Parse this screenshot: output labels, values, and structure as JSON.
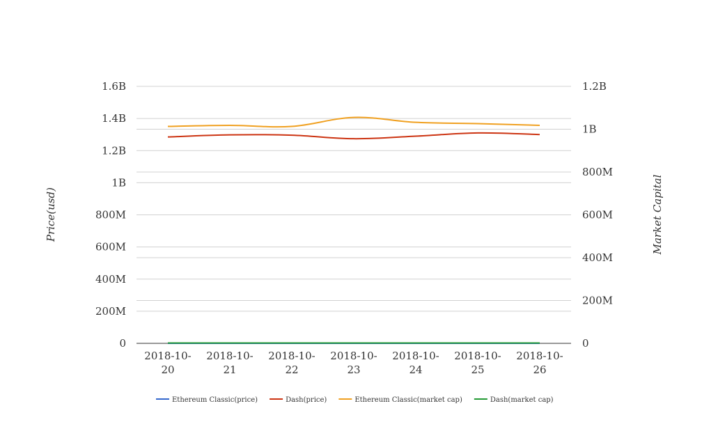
{
  "chart_data": {
    "type": "line",
    "title": "",
    "categories": [
      "2018-10-20",
      "2018-10-21",
      "2018-10-22",
      "2018-10-23",
      "2018-10-24",
      "2018-10-25",
      "2018-10-26"
    ],
    "category_lines": [
      [
        "2018-10-",
        "20"
      ],
      [
        "2018-10-",
        "21"
      ],
      [
        "2018-10-",
        "22"
      ],
      [
        "2018-10-",
        "23"
      ],
      [
        "2018-10-",
        "24"
      ],
      [
        "2018-10-",
        "25"
      ],
      [
        "2018-10-",
        "26"
      ]
    ],
    "y_left": {
      "label": "Price(usd)",
      "ylim": [
        0,
        1600000000
      ],
      "ticks": [
        0,
        200000000,
        400000000,
        600000000,
        800000000,
        1000000000,
        1200000000,
        1400000000,
        1600000000
      ],
      "tick_labels": [
        "0",
        "200M",
        "400M",
        "600M",
        "800M",
        "1B",
        "1.2B",
        "1.4B",
        "1.6B"
      ]
    },
    "y_right": {
      "label": "Market Capital",
      "ylim": [
        0,
        1200000000
      ],
      "ticks": [
        0,
        200000000,
        400000000,
        600000000,
        800000000,
        1000000000,
        1200000000
      ],
      "tick_labels": [
        "0",
        "200M",
        "400M",
        "600M",
        "800M",
        "1B",
        "1.2B"
      ]
    },
    "grid": true,
    "legend_position": "bottom",
    "series": [
      {
        "name": "Ethereum Classic(price)",
        "axis": "left",
        "color": "#3366cc",
        "values": [
          10,
          10,
          10,
          10,
          10,
          10,
          10
        ]
      },
      {
        "name": "Dash(price)",
        "axis": "left",
        "color": "#cc3311",
        "values": [
          1285000000,
          1298000000,
          1296000000,
          1274000000,
          1290000000,
          1310000000,
          1300000000
        ]
      },
      {
        "name": "Ethereum Classic(market cap)",
        "axis": "right",
        "color": "#f0a020",
        "values": [
          1013000000,
          1018000000,
          1013000000,
          1055000000,
          1032000000,
          1026000000,
          1018000000
        ]
      },
      {
        "name": "Dash(market cap)",
        "axis": "right",
        "color": "#229933",
        "values": [
          1500000,
          1500000,
          1500000,
          1500000,
          1500000,
          1500000,
          1500000
        ]
      }
    ]
  }
}
